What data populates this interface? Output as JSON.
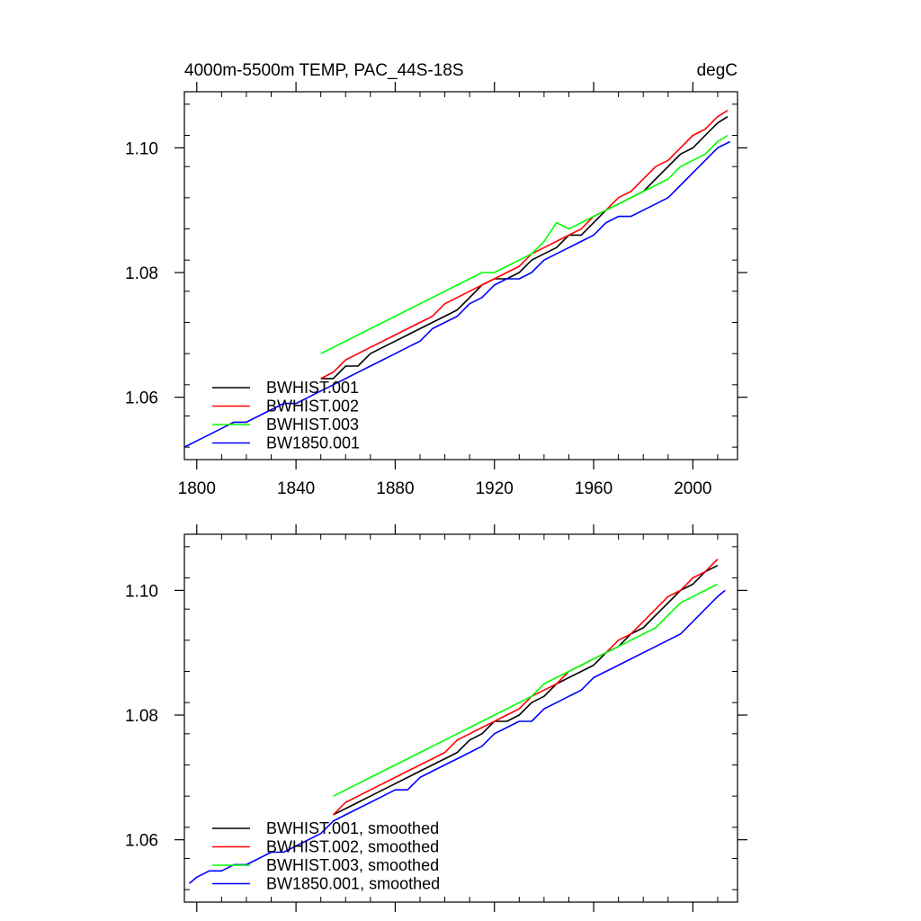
{
  "chart_data": [
    {
      "type": "line",
      "title_left": "4000m-5500m TEMP, PAC_44S-18S",
      "title_right": "degC",
      "xlim": [
        1795,
        2018
      ],
      "ylim": [
        1.05,
        1.109
      ],
      "x_ticks": [
        1800,
        1840,
        1880,
        1920,
        1960,
        2000
      ],
      "x_tick_labels": [
        "1800",
        "1840",
        "1880",
        "1920",
        "1960",
        "2000"
      ],
      "y_ticks": [
        1.06,
        1.08,
        1.1
      ],
      "y_tick_labels": [
        "1.06",
        "1.08",
        "1.10"
      ],
      "legend_position": "bottom-left",
      "series": [
        {
          "name": "BWHIST.001",
          "color": "#000000",
          "x": [
            1850,
            1855,
            1860,
            1865,
            1870,
            1875,
            1880,
            1885,
            1890,
            1895,
            1900,
            1905,
            1910,
            1915,
            1920,
            1925,
            1930,
            1935,
            1940,
            1945,
            1950,
            1955,
            1960,
            1965,
            1970,
            1975,
            1980,
            1985,
            1990,
            1995,
            2000,
            2005,
            2010,
            2014
          ],
          "y": [
            1.063,
            1.063,
            1.065,
            1.065,
            1.067,
            1.068,
            1.069,
            1.07,
            1.071,
            1.072,
            1.073,
            1.074,
            1.076,
            1.078,
            1.079,
            1.079,
            1.08,
            1.082,
            1.083,
            1.084,
            1.086,
            1.086,
            1.088,
            1.09,
            1.091,
            1.092,
            1.093,
            1.095,
            1.097,
            1.099,
            1.1,
            1.102,
            1.104,
            1.105
          ]
        },
        {
          "name": "BWHIST.002",
          "color": "#ff0000",
          "x": [
            1850,
            1855,
            1860,
            1865,
            1870,
            1875,
            1880,
            1885,
            1890,
            1895,
            1900,
            1905,
            1910,
            1915,
            1920,
            1925,
            1930,
            1935,
            1940,
            1945,
            1950,
            1955,
            1960,
            1965,
            1970,
            1975,
            1980,
            1985,
            1990,
            1995,
            2000,
            2005,
            2010,
            2014
          ],
          "y": [
            1.063,
            1.064,
            1.066,
            1.067,
            1.068,
            1.069,
            1.07,
            1.071,
            1.072,
            1.073,
            1.075,
            1.076,
            1.077,
            1.078,
            1.079,
            1.08,
            1.081,
            1.083,
            1.084,
            1.085,
            1.086,
            1.087,
            1.089,
            1.09,
            1.092,
            1.093,
            1.095,
            1.097,
            1.098,
            1.1,
            1.102,
            1.103,
            1.105,
            1.106
          ]
        },
        {
          "name": "BWHIST.003",
          "color": "#00ff00",
          "x": [
            1850,
            1855,
            1860,
            1865,
            1870,
            1875,
            1880,
            1885,
            1890,
            1895,
            1900,
            1905,
            1910,
            1915,
            1920,
            1925,
            1930,
            1935,
            1940,
            1945,
            1950,
            1955,
            1960,
            1965,
            1970,
            1975,
            1980,
            1985,
            1990,
            1995,
            2000,
            2005,
            2010,
            2014
          ],
          "y": [
            1.067,
            1.068,
            1.069,
            1.07,
            1.071,
            1.072,
            1.073,
            1.074,
            1.075,
            1.076,
            1.077,
            1.078,
            1.079,
            1.08,
            1.08,
            1.081,
            1.082,
            1.083,
            1.085,
            1.088,
            1.087,
            1.088,
            1.089,
            1.09,
            1.091,
            1.092,
            1.093,
            1.094,
            1.095,
            1.097,
            1.098,
            1.099,
            1.101,
            1.102
          ]
        },
        {
          "name": "BW1850.001",
          "color": "#0000ff",
          "x": [
            1795,
            1800,
            1805,
            1810,
            1815,
            1820,
            1825,
            1830,
            1835,
            1840,
            1845,
            1850,
            1855,
            1860,
            1865,
            1870,
            1875,
            1880,
            1885,
            1890,
            1895,
            1900,
            1905,
            1910,
            1915,
            1920,
            1925,
            1930,
            1935,
            1940,
            1945,
            1950,
            1955,
            1960,
            1965,
            1970,
            1975,
            1980,
            1985,
            1990,
            1995,
            2000,
            2005,
            2010,
            2015
          ],
          "y": [
            1.052,
            1.053,
            1.054,
            1.055,
            1.056,
            1.056,
            1.057,
            1.058,
            1.059,
            1.059,
            1.06,
            1.061,
            1.062,
            1.063,
            1.064,
            1.065,
            1.066,
            1.067,
            1.068,
            1.069,
            1.071,
            1.072,
            1.073,
            1.075,
            1.076,
            1.078,
            1.079,
            1.079,
            1.08,
            1.082,
            1.083,
            1.084,
            1.085,
            1.086,
            1.088,
            1.089,
            1.089,
            1.09,
            1.091,
            1.092,
            1.094,
            1.096,
            1.098,
            1.1,
            1.101
          ]
        }
      ]
    },
    {
      "type": "line",
      "xlim": [
        1795,
        2018
      ],
      "ylim": [
        1.05,
        1.109
      ],
      "x_ticks": [
        1800,
        1840,
        1880,
        1920,
        1960,
        2000
      ],
      "y_ticks": [
        1.06,
        1.08,
        1.1
      ],
      "y_tick_labels": [
        "1.06",
        "1.08",
        "1.10"
      ],
      "legend_position": "bottom-left",
      "series": [
        {
          "name": "BWHIST.001, smoothed",
          "color": "#000000",
          "x": [
            1855,
            1860,
            1865,
            1870,
            1875,
            1880,
            1885,
            1890,
            1895,
            1900,
            1905,
            1910,
            1915,
            1920,
            1925,
            1930,
            1935,
            1940,
            1945,
            1950,
            1955,
            1960,
            1965,
            1970,
            1975,
            1980,
            1985,
            1990,
            1995,
            2000,
            2005,
            2010
          ],
          "y": [
            1.064,
            1.065,
            1.066,
            1.067,
            1.068,
            1.069,
            1.07,
            1.071,
            1.072,
            1.073,
            1.074,
            1.076,
            1.077,
            1.079,
            1.079,
            1.08,
            1.082,
            1.083,
            1.085,
            1.086,
            1.087,
            1.088,
            1.09,
            1.091,
            1.093,
            1.094,
            1.096,
            1.098,
            1.1,
            1.101,
            1.103,
            1.104
          ]
        },
        {
          "name": "BWHIST.002, smoothed",
          "color": "#ff0000",
          "x": [
            1855,
            1860,
            1865,
            1870,
            1875,
            1880,
            1885,
            1890,
            1895,
            1900,
            1905,
            1910,
            1915,
            1920,
            1925,
            1930,
            1935,
            1940,
            1945,
            1950,
            1955,
            1960,
            1965,
            1970,
            1975,
            1980,
            1985,
            1990,
            1995,
            2000,
            2005,
            2010
          ],
          "y": [
            1.064,
            1.066,
            1.067,
            1.068,
            1.069,
            1.07,
            1.071,
            1.072,
            1.073,
            1.074,
            1.076,
            1.077,
            1.078,
            1.079,
            1.08,
            1.081,
            1.083,
            1.084,
            1.085,
            1.087,
            1.088,
            1.089,
            1.09,
            1.092,
            1.093,
            1.095,
            1.097,
            1.099,
            1.1,
            1.102,
            1.103,
            1.105
          ]
        },
        {
          "name": "BWHIST.003, smoothed",
          "color": "#00ff00",
          "x": [
            1855,
            1860,
            1865,
            1870,
            1875,
            1880,
            1885,
            1890,
            1895,
            1900,
            1905,
            1910,
            1915,
            1920,
            1925,
            1930,
            1935,
            1940,
            1945,
            1950,
            1955,
            1960,
            1965,
            1970,
            1975,
            1980,
            1985,
            1990,
            1995,
            2000,
            2005,
            2010
          ],
          "y": [
            1.067,
            1.068,
            1.069,
            1.07,
            1.071,
            1.072,
            1.073,
            1.074,
            1.075,
            1.076,
            1.077,
            1.078,
            1.079,
            1.08,
            1.081,
            1.082,
            1.083,
            1.085,
            1.086,
            1.087,
            1.088,
            1.089,
            1.09,
            1.091,
            1.092,
            1.093,
            1.094,
            1.096,
            1.098,
            1.099,
            1.1,
            1.101
          ]
        },
        {
          "name": "BW1850.001, smoothed",
          "color": "#0000ff",
          "x": [
            1797,
            1800,
            1805,
            1810,
            1815,
            1820,
            1825,
            1830,
            1835,
            1840,
            1845,
            1850,
            1855,
            1860,
            1865,
            1870,
            1875,
            1880,
            1885,
            1890,
            1895,
            1900,
            1905,
            1910,
            1915,
            1920,
            1925,
            1930,
            1935,
            1940,
            1945,
            1950,
            1955,
            1960,
            1965,
            1970,
            1975,
            1980,
            1985,
            1990,
            1995,
            2000,
            2005,
            2010,
            2013
          ],
          "y": [
            1.053,
            1.054,
            1.055,
            1.055,
            1.056,
            1.056,
            1.057,
            1.058,
            1.058,
            1.059,
            1.06,
            1.061,
            1.063,
            1.064,
            1.065,
            1.066,
            1.067,
            1.068,
            1.068,
            1.07,
            1.071,
            1.072,
            1.073,
            1.074,
            1.075,
            1.077,
            1.078,
            1.079,
            1.079,
            1.081,
            1.082,
            1.083,
            1.084,
            1.086,
            1.087,
            1.088,
            1.089,
            1.09,
            1.091,
            1.092,
            1.093,
            1.095,
            1.097,
            1.099,
            1.1
          ]
        }
      ]
    }
  ]
}
